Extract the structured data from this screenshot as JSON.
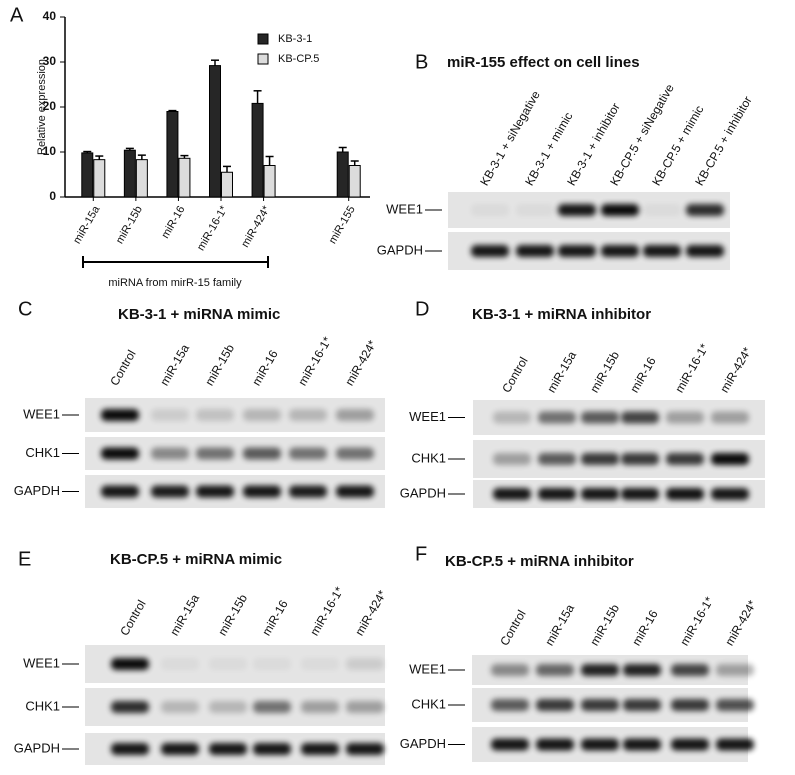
{
  "panel_label": "A",
  "chart_data": {
    "type": "bar",
    "ylabel": "Relative expression",
    "categories": [
      "miR-15a",
      "miR-15b",
      "miR-16",
      "miR-16-1*",
      "miR-424*",
      null,
      "miR-155"
    ],
    "series": [
      {
        "name": "KB-3-1",
        "color": "#262626",
        "values": [
          9.8,
          10.4,
          19,
          29.2,
          20.8,
          null,
          10
        ],
        "errors": [
          0.3,
          0.4,
          0.2,
          1.2,
          2.8,
          null,
          1
        ]
      },
      {
        "name": "KB-CP.5",
        "color": "#dcdcdc",
        "values": [
          8.3,
          8.3,
          8.6,
          5.5,
          7,
          null,
          7
        ],
        "errors": [
          0.8,
          1,
          0.6,
          1.3,
          2,
          null,
          1
        ]
      }
    ],
    "ylim": [
      0,
      40
    ],
    "yticks": [
      0,
      10,
      20,
      30,
      40
    ],
    "annotation": "miRNA from mirR-15 family"
  },
  "blots": [
    {
      "panel": "B",
      "title": "miR-155 effect on cell lines",
      "lanes": [
        "KB-3-1 + siNegative",
        "KB-3-1 + mimic",
        "KB-3-1 + inhibitor",
        "KB-CP.5 + siNegative",
        "KB-CP.5 + mimic",
        "KB-CP.5 + inhibitor"
      ],
      "rows": [
        "WEE1",
        "GAPDH"
      ]
    },
    {
      "panel": "C",
      "title": "KB-3-1 + miRNA mimic",
      "lanes": [
        "Control",
        "miR-15a",
        "miR-15b",
        "miR-16",
        "miR-16-1*",
        "miR-424*"
      ],
      "rows": [
        "WEE1",
        "CHK1",
        "GAPDH"
      ]
    },
    {
      "panel": "D",
      "title": "KB-3-1 + miRNA inhibitor",
      "lanes": [
        "Control",
        "miR-15a",
        "miR-15b",
        "miR-16",
        "miR-16-1*",
        "miR-424*"
      ],
      "rows": [
        "WEE1",
        "CHK1",
        "GAPDH"
      ]
    },
    {
      "panel": "E",
      "title": "KB-CP.5 + miRNA mimic",
      "lanes": [
        "Control",
        "miR-15a",
        "miR-15b",
        "miR-16",
        "miR-16-1*",
        "miR-424*"
      ],
      "rows": [
        "WEE1",
        "CHK1",
        "GAPDH"
      ]
    },
    {
      "panel": "F",
      "title": "KB-CP.5 + miRNA inhibitor",
      "lanes": [
        "Control",
        "miR-15a",
        "miR-15b",
        "miR-16",
        "miR-16-1*",
        "miR-424*"
      ],
      "rows": [
        "WEE1",
        "CHK1",
        "GAPDH"
      ]
    }
  ]
}
